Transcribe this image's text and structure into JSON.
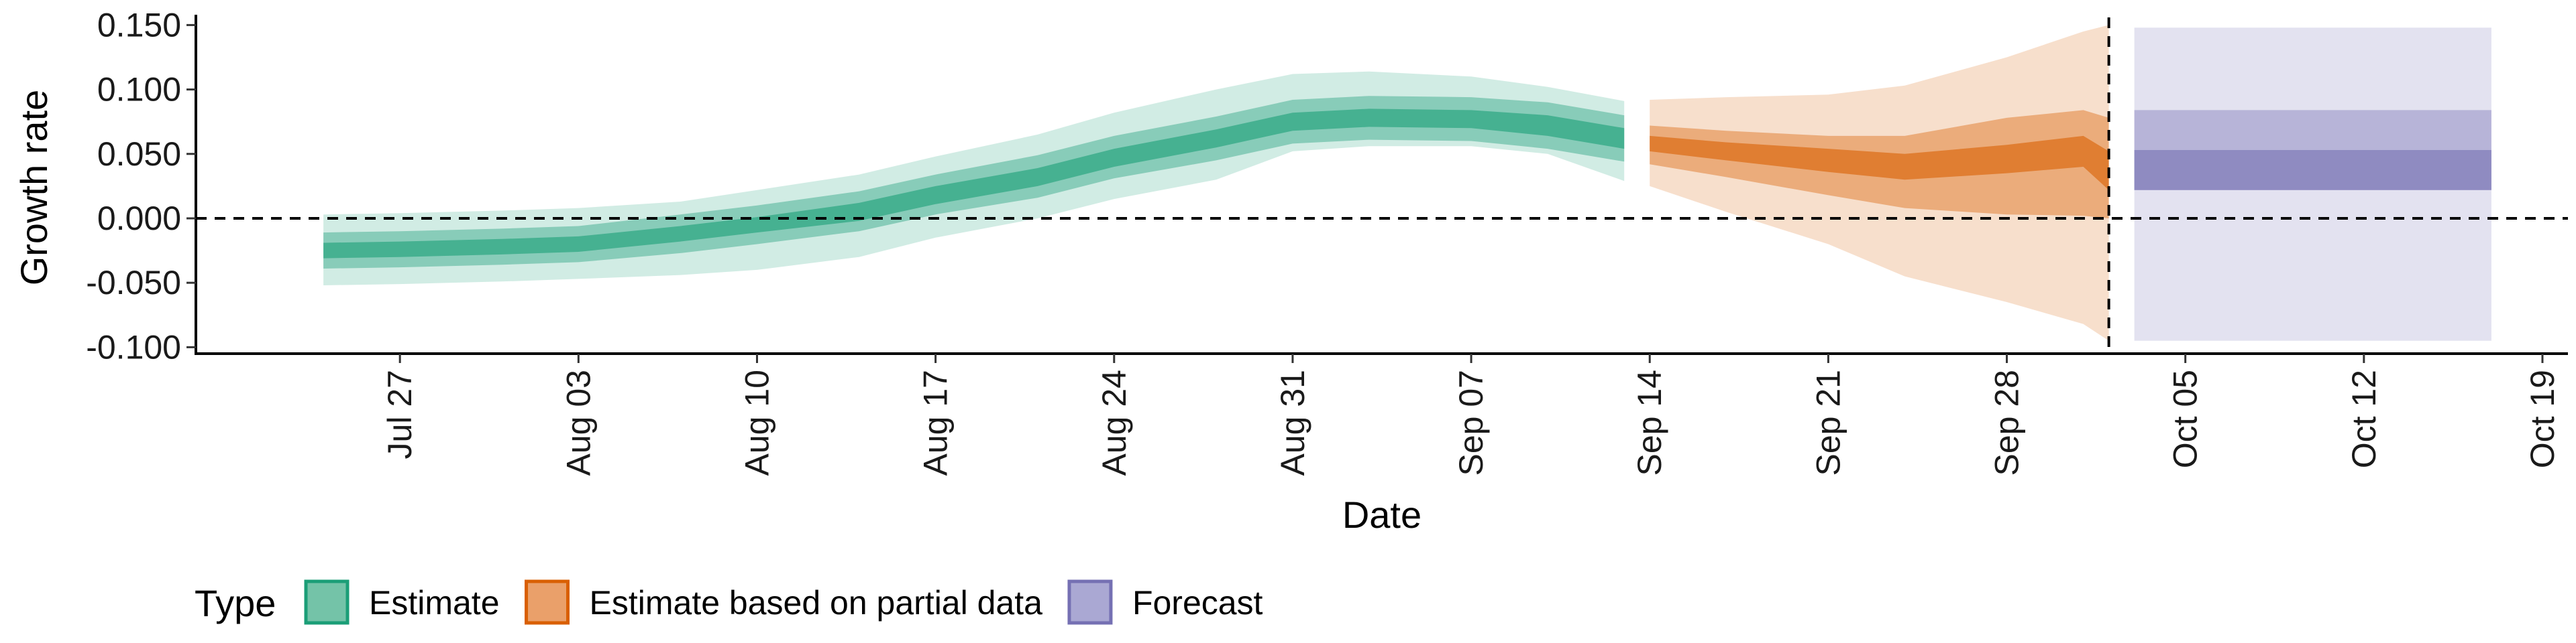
{
  "chart_data": {
    "type": "area",
    "xlabel": "Date",
    "ylabel": "Growth rate",
    "xlim": [
      "2020-07-19",
      "2020-10-20"
    ],
    "ylim": [
      -0.105,
      0.158
    ],
    "x_ticks": [
      "2020-07-27",
      "2020-08-03",
      "2020-08-10",
      "2020-08-17",
      "2020-08-24",
      "2020-08-31",
      "2020-09-07",
      "2020-09-14",
      "2020-09-21",
      "2020-09-28",
      "2020-10-05",
      "2020-10-12",
      "2020-10-19"
    ],
    "x_tick_labels": [
      "Jul 27",
      "Aug 03",
      "Aug 10",
      "Aug 17",
      "Aug 24",
      "Aug 31",
      "Sep 07",
      "Sep 14",
      "Sep 21",
      "Sep 28",
      "Oct 05",
      "Oct 12",
      "Oct 19"
    ],
    "y_ticks": [
      -0.1,
      -0.05,
      0,
      0.05,
      0.1,
      0.15
    ],
    "y_tick_labels": [
      "-0.100",
      "-0.050",
      "0.000",
      "0.050",
      "0.100",
      "0.150"
    ],
    "reference_lines": {
      "horizontal_y": 0,
      "vertical_date": "2020-10-02"
    },
    "legend": {
      "title": "Type",
      "position": "bottom-left",
      "entries": [
        {
          "label": "Estimate",
          "fill": "#74c3a8",
          "stroke": "#1b9e77"
        },
        {
          "label": "Estimate based on partial data",
          "fill": "#eaa06a",
          "stroke": "#d95f02"
        },
        {
          "label": "Forecast",
          "fill": "#aaa8d3",
          "stroke": "#7570b3"
        }
      ]
    },
    "series": [
      {
        "type": "Estimate",
        "color": "#1b9e77",
        "band_opacity": [
          0.2,
          0.4,
          0.6
        ],
        "x": [
          "2020-07-24",
          "2020-07-27",
          "2020-07-31",
          "2020-08-03",
          "2020-08-07",
          "2020-08-10",
          "2020-08-14",
          "2020-08-17",
          "2020-08-21",
          "2020-08-24",
          "2020-08-28",
          "2020-08-31",
          "2020-09-03",
          "2020-09-07",
          "2020-09-10",
          "2020-09-13"
        ],
        "median": [
          -0.025,
          -0.024,
          -0.022,
          -0.02,
          -0.012,
          -0.005,
          0.005,
          0.018,
          0.032,
          0.047,
          0.062,
          0.075,
          0.078,
          0.077,
          0.072,
          0.062
        ],
        "inner": {
          "lower": [
            -0.031,
            -0.03,
            -0.028,
            -0.026,
            -0.018,
            -0.011,
            -0.002,
            0.011,
            0.025,
            0.04,
            0.055,
            0.068,
            0.071,
            0.07,
            0.064,
            0.054
          ],
          "upper": [
            -0.019,
            -0.018,
            -0.016,
            -0.014,
            -0.006,
            0.001,
            0.012,
            0.025,
            0.039,
            0.054,
            0.069,
            0.082,
            0.085,
            0.084,
            0.08,
            0.07
          ]
        },
        "mid": {
          "lower": [
            -0.039,
            -0.038,
            -0.036,
            -0.034,
            -0.027,
            -0.02,
            -0.01,
            0.003,
            0.016,
            0.031,
            0.045,
            0.058,
            0.061,
            0.06,
            0.054,
            0.044
          ],
          "upper": [
            -0.011,
            -0.01,
            -0.008,
            -0.006,
            0.003,
            0.01,
            0.021,
            0.034,
            0.049,
            0.064,
            0.079,
            0.092,
            0.095,
            0.094,
            0.09,
            0.08
          ]
        },
        "outer": {
          "lower": [
            -0.052,
            -0.051,
            -0.049,
            -0.047,
            -0.044,
            -0.04,
            -0.03,
            -0.015,
            0.0,
            0.015,
            0.03,
            0.052,
            0.056,
            0.056,
            0.05,
            0.029
          ],
          "upper": [
            0.003,
            0.004,
            0.006,
            0.008,
            0.013,
            0.022,
            0.034,
            0.048,
            0.065,
            0.082,
            0.1,
            0.112,
            0.114,
            0.11,
            0.102,
            0.091
          ]
        }
      },
      {
        "type": "Estimate based on partial data",
        "color": "#d95f02",
        "band_opacity": [
          0.2,
          0.4,
          0.6
        ],
        "x": [
          "2020-09-14",
          "2020-09-17",
          "2020-09-21",
          "2020-09-24",
          "2020-09-28",
          "2020-10-01",
          "2020-10-02"
        ],
        "median": [
          0.058,
          0.052,
          0.045,
          0.04,
          0.046,
          0.052,
          0.037
        ],
        "inner": {
          "lower": [
            0.052,
            0.045,
            0.036,
            0.03,
            0.035,
            0.04,
            0.022
          ],
          "upper": [
            0.064,
            0.059,
            0.054,
            0.05,
            0.057,
            0.064,
            0.052
          ]
        },
        "mid": {
          "lower": [
            0.042,
            0.032,
            0.018,
            0.008,
            0.003,
            0.002,
            0.0
          ],
          "upper": [
            0.072,
            0.068,
            0.064,
            0.064,
            0.078,
            0.084,
            0.078
          ]
        },
        "outer": {
          "lower": [
            0.025,
            0.005,
            -0.02,
            -0.045,
            -0.065,
            -0.082,
            -0.095
          ],
          "upper": [
            0.092,
            0.094,
            0.096,
            0.103,
            0.125,
            0.145,
            0.15
          ]
        }
      },
      {
        "type": "Forecast",
        "color": "#7570b3",
        "band_opacity": [
          0.2,
          0.4,
          0.6
        ],
        "x": [
          "2020-10-03",
          "2020-10-17"
        ],
        "median": [
          0.052,
          0.052
        ],
        "inner": {
          "lower": [
            0.022,
            0.022
          ],
          "upper": [
            0.053,
            0.053
          ]
        },
        "mid": {
          "lower": [
            0.022,
            0.022
          ],
          "upper": [
            0.084,
            0.084
          ]
        },
        "outer": {
          "lower": [
            -0.095,
            -0.095
          ],
          "upper": [
            0.148,
            0.148
          ]
        }
      }
    ]
  }
}
